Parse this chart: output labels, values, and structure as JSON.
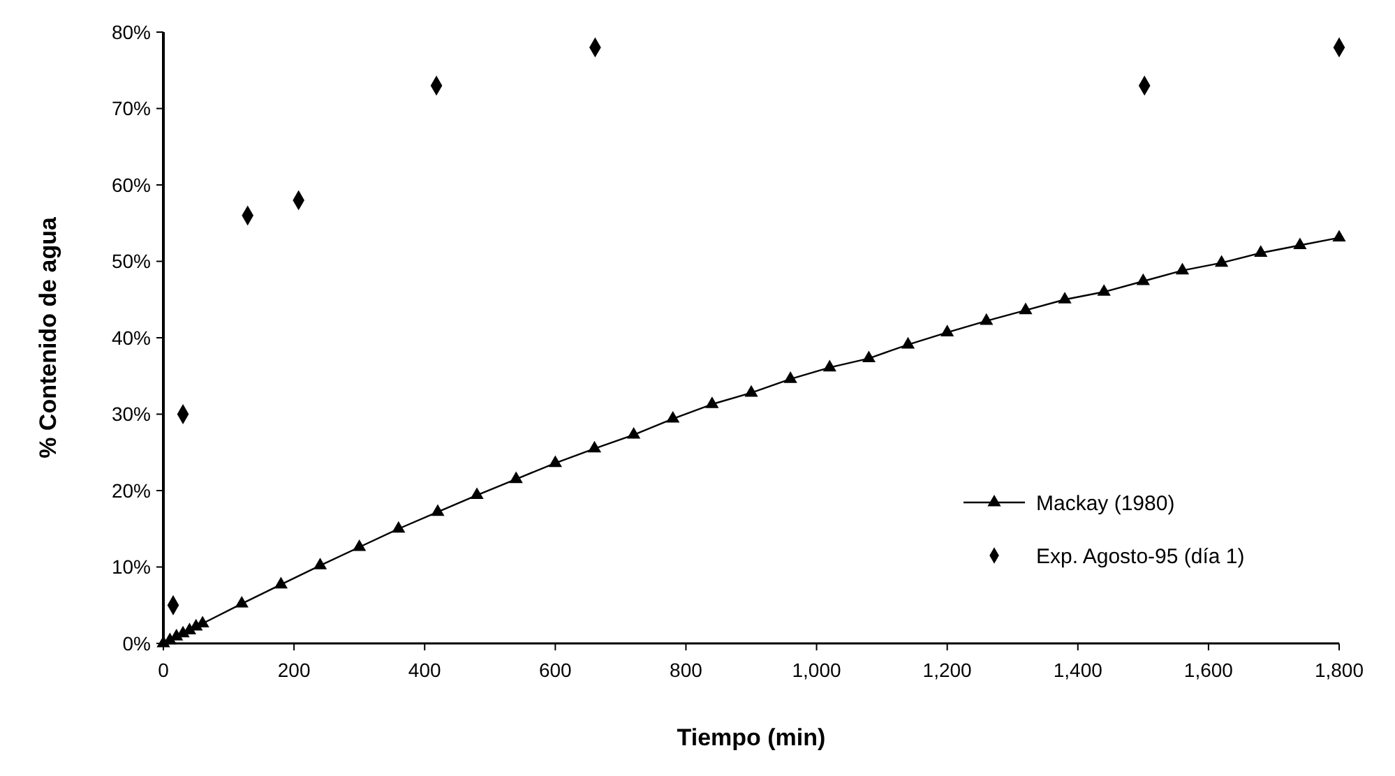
{
  "chart_data": {
    "type": "line",
    "xlabel": "Tiempo (min)",
    "ylabel": "% Contenido de agua",
    "xlim": [
      0,
      1800
    ],
    "ylim": [
      0,
      80
    ],
    "xticks": [
      0,
      200,
      400,
      600,
      800,
      {
        "value": 1000,
        "label": "1,000"
      },
      {
        "value": 1200,
        "label": "1,200"
      },
      {
        "value": 1400,
        "label": "1,400"
      },
      {
        "value": 1600,
        "label": "1,600"
      },
      {
        "value": 1800,
        "label": "1,800"
      }
    ],
    "yticks": [
      {
        "value": 0,
        "label": "0%"
      },
      {
        "value": 10,
        "label": "10%"
      },
      {
        "value": 20,
        "label": "20%"
      },
      {
        "value": 30,
        "label": "30%"
      },
      {
        "value": 40,
        "label": "40%"
      },
      {
        "value": 50,
        "label": "50%"
      },
      {
        "value": 60,
        "label": "60%"
      },
      {
        "value": 70,
        "label": "70%"
      },
      {
        "value": 80,
        "label": "80%"
      }
    ],
    "grid": false,
    "legend": "bottom right",
    "series": [
      {
        "name": "Mackay (1980)",
        "type": "line",
        "color": "#000000",
        "marker": "triangle",
        "line_style": "solid",
        "x": [
          0,
          10,
          20,
          30,
          40,
          50,
          60,
          120,
          180,
          240,
          300,
          360,
          420,
          480,
          540,
          600,
          660,
          720,
          780,
          840,
          900,
          960,
          1020,
          1080,
          1140,
          1200,
          1260,
          1320,
          1380,
          1440,
          1500,
          1560,
          1620,
          1680,
          1740,
          1800
        ],
        "values": [
          0,
          0.4,
          0.9,
          1.3,
          1.7,
          2.2,
          2.6,
          5.2,
          7.7,
          10.2,
          12.6,
          15,
          17.2,
          19.4,
          21.5,
          23.6,
          25.5,
          27.3,
          29.4,
          31.3,
          32.8,
          34.6,
          36.1,
          37.3,
          39.1,
          40.7,
          42.2,
          43.6,
          45,
          46,
          47.4,
          48.8,
          49.8,
          51.1,
          52.1,
          53.1
        ]
      },
      {
        "name": "Exp. Agosto-95 (día 1)",
        "type": "scatter",
        "color": "#000000",
        "marker": "diamond",
        "x": [
          15,
          30,
          129,
          207,
          418,
          661,
          1502,
          1800
        ],
        "values": [
          5,
          30,
          56,
          58,
          73,
          78,
          73,
          78
        ]
      }
    ]
  }
}
